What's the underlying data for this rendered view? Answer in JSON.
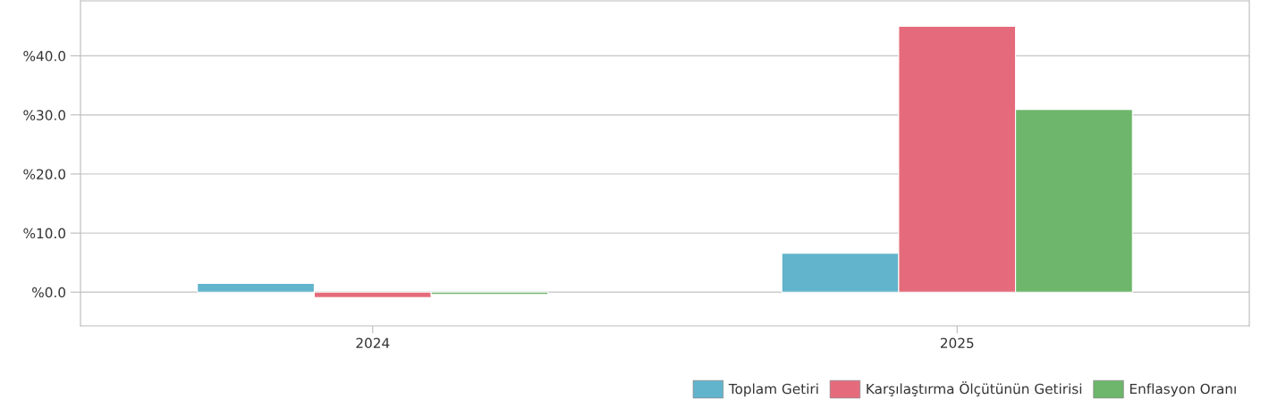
{
  "chart_data": {
    "type": "bar",
    "categories": [
      "2024",
      "2025"
    ],
    "series": [
      {
        "name": "Toplam Getiri",
        "color": "#62b4cc",
        "values": [
          1.5,
          6.6
        ]
      },
      {
        "name": "Karşılaştırma Ölçütünün Getirisi",
        "color": "#e56b7c",
        "values": [
          -0.9,
          45.0
        ]
      },
      {
        "name": "Enflasyon Oranı",
        "color": "#6db66b",
        "values": [
          -0.4,
          30.9
        ]
      }
    ],
    "ylim": [
      -5.7,
      49.3
    ],
    "yticks": [
      {
        "value": 0,
        "label": "%0.0"
      },
      {
        "value": 10,
        "label": "%10.0"
      },
      {
        "value": 20,
        "label": "%20.0"
      },
      {
        "value": 30,
        "label": "%30.0"
      },
      {
        "value": 40,
        "label": "%40.0"
      }
    ],
    "grid": "y",
    "legend": "bottom right"
  }
}
